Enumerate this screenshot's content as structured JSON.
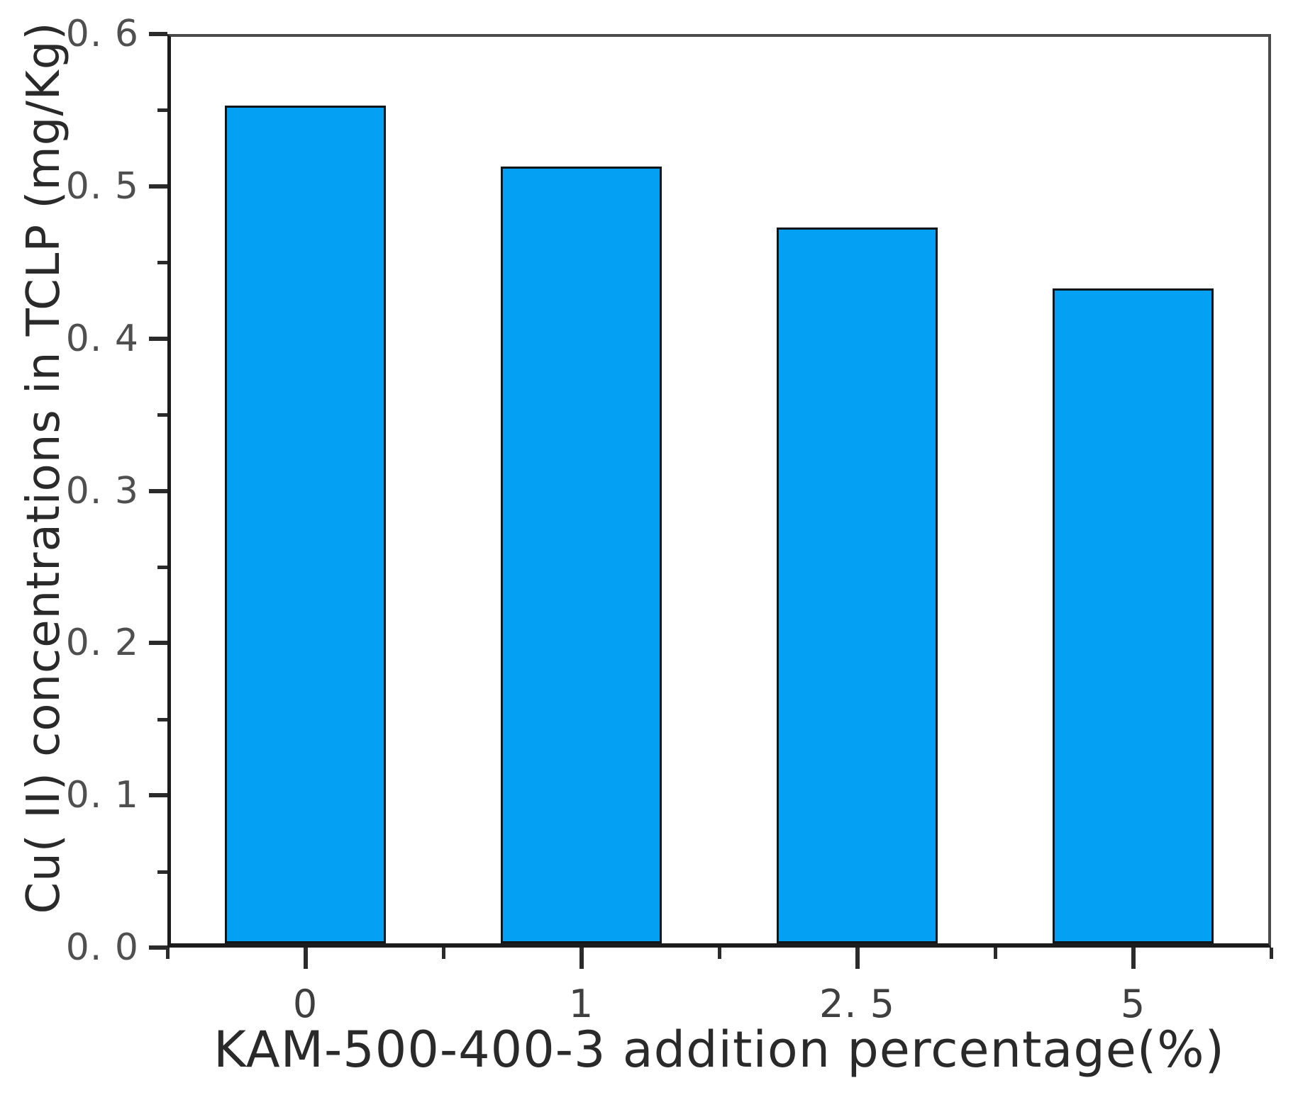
{
  "chart_data": {
    "type": "bar",
    "title": "",
    "xlabel": "KAM-500-400-3 addition percentage(%)",
    "ylabel": "Cu( II) concentrations in TCLP (mg/Kg)",
    "categories": [
      "0",
      "1",
      "2. 5",
      "5"
    ],
    "values": [
      0.55,
      0.51,
      0.47,
      0.43
    ],
    "ylim": [
      0.0,
      0.6
    ],
    "ytick_step": 0.1,
    "yminor_step": 0.05,
    "ytick_labels": [
      "0. 0",
      "0. 1",
      "0. 2",
      "0. 3",
      "0. 4",
      "0. 5",
      "0. 6"
    ],
    "bar_color": "#03A0F4",
    "bar_edge_color": "#10151a",
    "axis_color": "#2b2b2b",
    "tick_label_color": "#4f4f4f",
    "axis_label_color": "#2a2a2a",
    "grid": false,
    "legend": null,
    "bar_width_fraction": 0.585
  }
}
